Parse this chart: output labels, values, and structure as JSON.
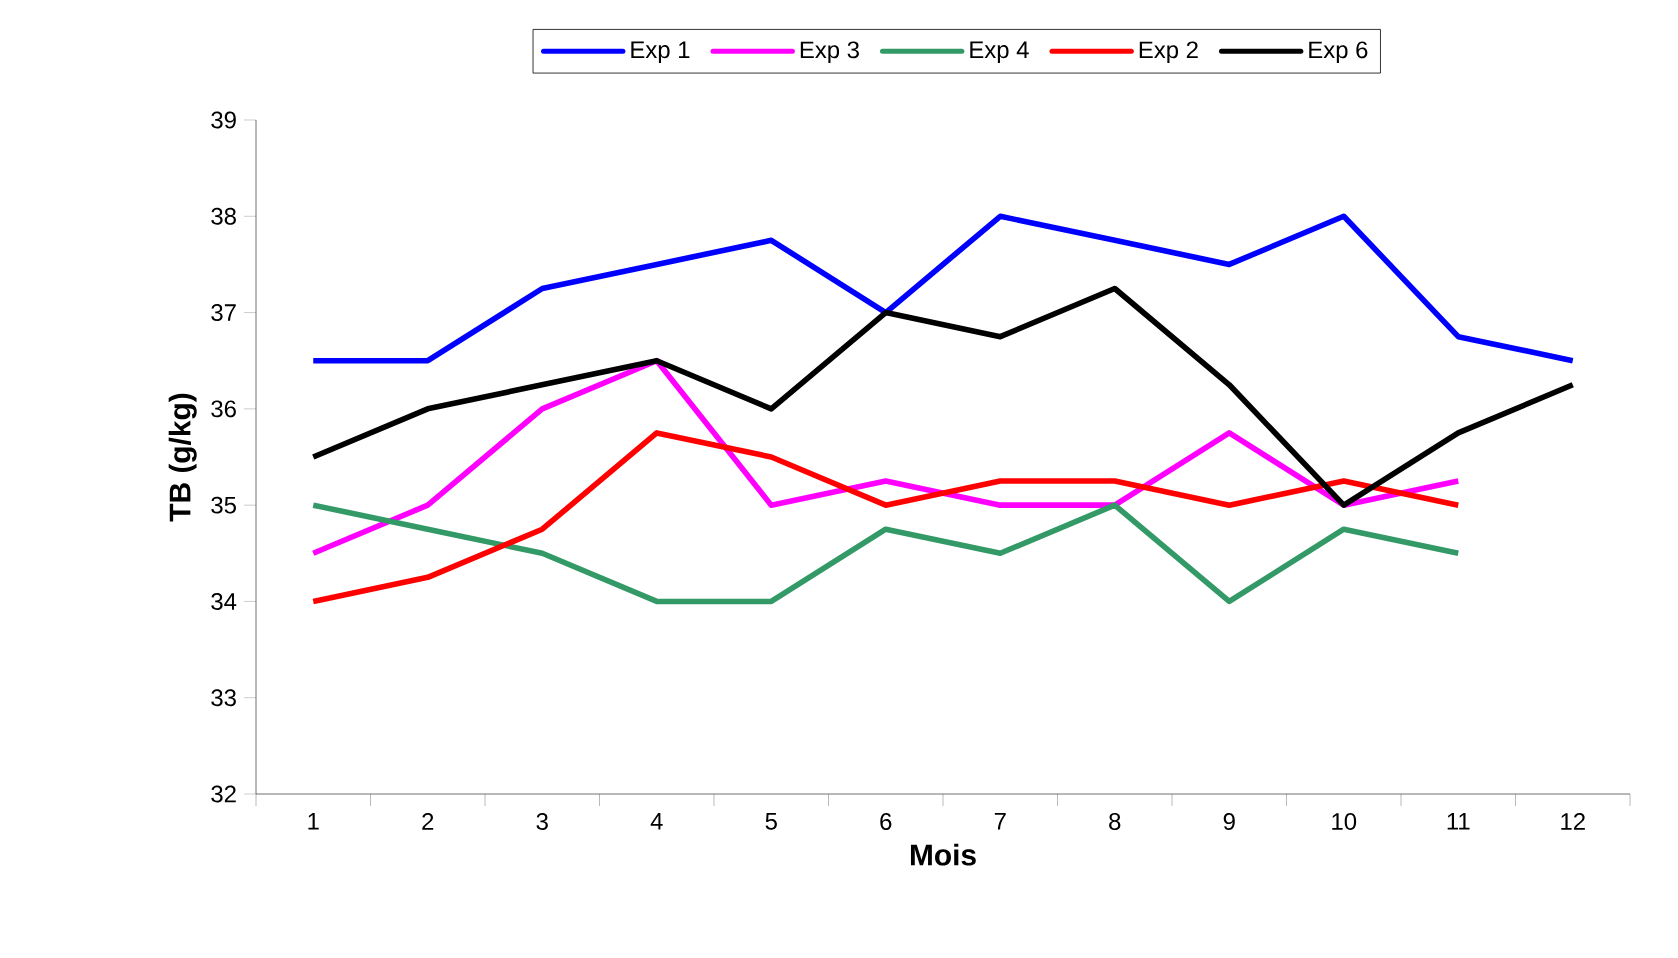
{
  "chart_data": {
    "type": "line",
    "xlabel": "Mois",
    "ylabel": "TB (g/kg)",
    "categories": [
      "1",
      "2",
      "3",
      "4",
      "5",
      "6",
      "7",
      "8",
      "9",
      "10",
      "11",
      "12"
    ],
    "ylim": [
      32,
      39
    ],
    "yticks": [
      32,
      33,
      34,
      35,
      36,
      37,
      38,
      39
    ],
    "legend": "top",
    "grid": false,
    "marker": "none",
    "line_style": "solid",
    "series": [
      {
        "name": "Exp 1",
        "color": "#0000ff",
        "values": [
          36.5,
          36.5,
          37.25,
          37.5,
          37.75,
          37,
          38,
          37.75,
          37.5,
          38,
          36.75,
          36.5
        ]
      },
      {
        "name": "Exp  3",
        "color": "#ff00ff",
        "values": [
          34.5,
          35,
          36,
          36.5,
          35,
          35.25,
          35,
          35,
          35.75,
          35,
          35.25,
          null
        ]
      },
      {
        "name": "Exp 4",
        "color": "#339966",
        "values": [
          35,
          34.75,
          34.5,
          34,
          34,
          34.75,
          34.5,
          35,
          34,
          34.75,
          34.5,
          null
        ]
      },
      {
        "name": "Exp 2",
        "color": "#ff0000",
        "values": [
          34,
          34.25,
          34.75,
          35.75,
          35.5,
          35,
          35.25,
          35.25,
          35,
          35.25,
          35,
          null
        ]
      },
      {
        "name": "Exp 6",
        "color": "#000000",
        "values": [
          35.5,
          36,
          36.25,
          36.5,
          36,
          37,
          36.75,
          37.25,
          36.25,
          35,
          35.75,
          36.25
        ]
      }
    ]
  }
}
